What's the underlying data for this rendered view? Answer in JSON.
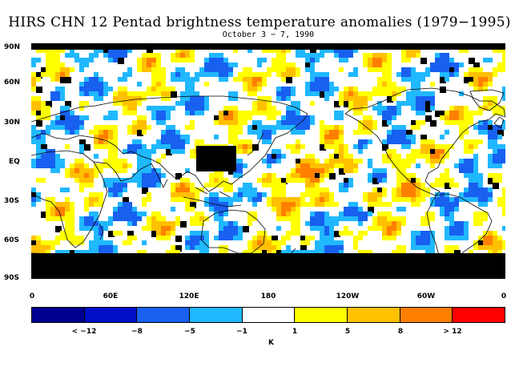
{
  "title": "HIRS CHN 12 Pentad brightness temperature anomalies (1979−1995)",
  "subtitle": "October 3 − 7, 1990",
  "lat_labels": [
    "90N",
    "60N",
    "30N",
    "EQ",
    "30S",
    "60S",
    "90S"
  ],
  "lon_labels": [
    "0",
    "60E",
    "120E",
    "180",
    "120W",
    "60W",
    "0"
  ],
  "colorbar": {
    "colors": [
      "#000090",
      "#0010c8",
      "#1860f0",
      "#20b8ff",
      "#ffffff",
      "#ffff00",
      "#ffc000",
      "#ff8000",
      "#ff0000"
    ],
    "labels": [
      "< −12",
      "−8",
      "−5",
      "−1",
      "1",
      "5",
      "8",
      "> 12"
    ],
    "units": "K"
  },
  "missing_color": "#000000"
}
